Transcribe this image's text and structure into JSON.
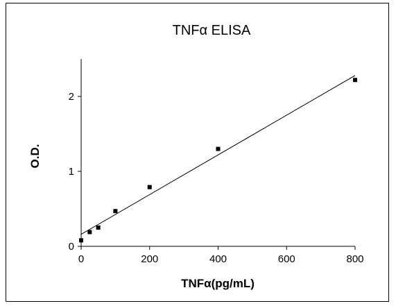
{
  "chart_data": {
    "type": "scatter",
    "title": "TNFα ELISA",
    "xlabel": "TNFα(pg/mL)",
    "ylabel": "O.D.",
    "xlim": [
      0,
      800
    ],
    "ylim": [
      0,
      2.5
    ],
    "xticks": [
      "0",
      "200",
      "400",
      "600",
      "800"
    ],
    "yticks": [
      "0",
      "1",
      "2"
    ],
    "grid": false,
    "series": [
      {
        "points": [
          {
            "x": 0,
            "y": 0.08
          },
          {
            "x": 25,
            "y": 0.19
          },
          {
            "x": 50,
            "y": 0.25
          },
          {
            "x": 100,
            "y": 0.47
          },
          {
            "x": 200,
            "y": 0.79
          },
          {
            "x": 400,
            "y": 1.3
          },
          {
            "x": 800,
            "y": 2.22
          }
        ]
      }
    ],
    "fit_line": {
      "type": "linear",
      "x": [
        0,
        800
      ],
      "y": [
        0.16,
        2.28
      ]
    },
    "colors": {
      "marker": "#000000",
      "line": "#000000",
      "axis": "#000000"
    }
  }
}
